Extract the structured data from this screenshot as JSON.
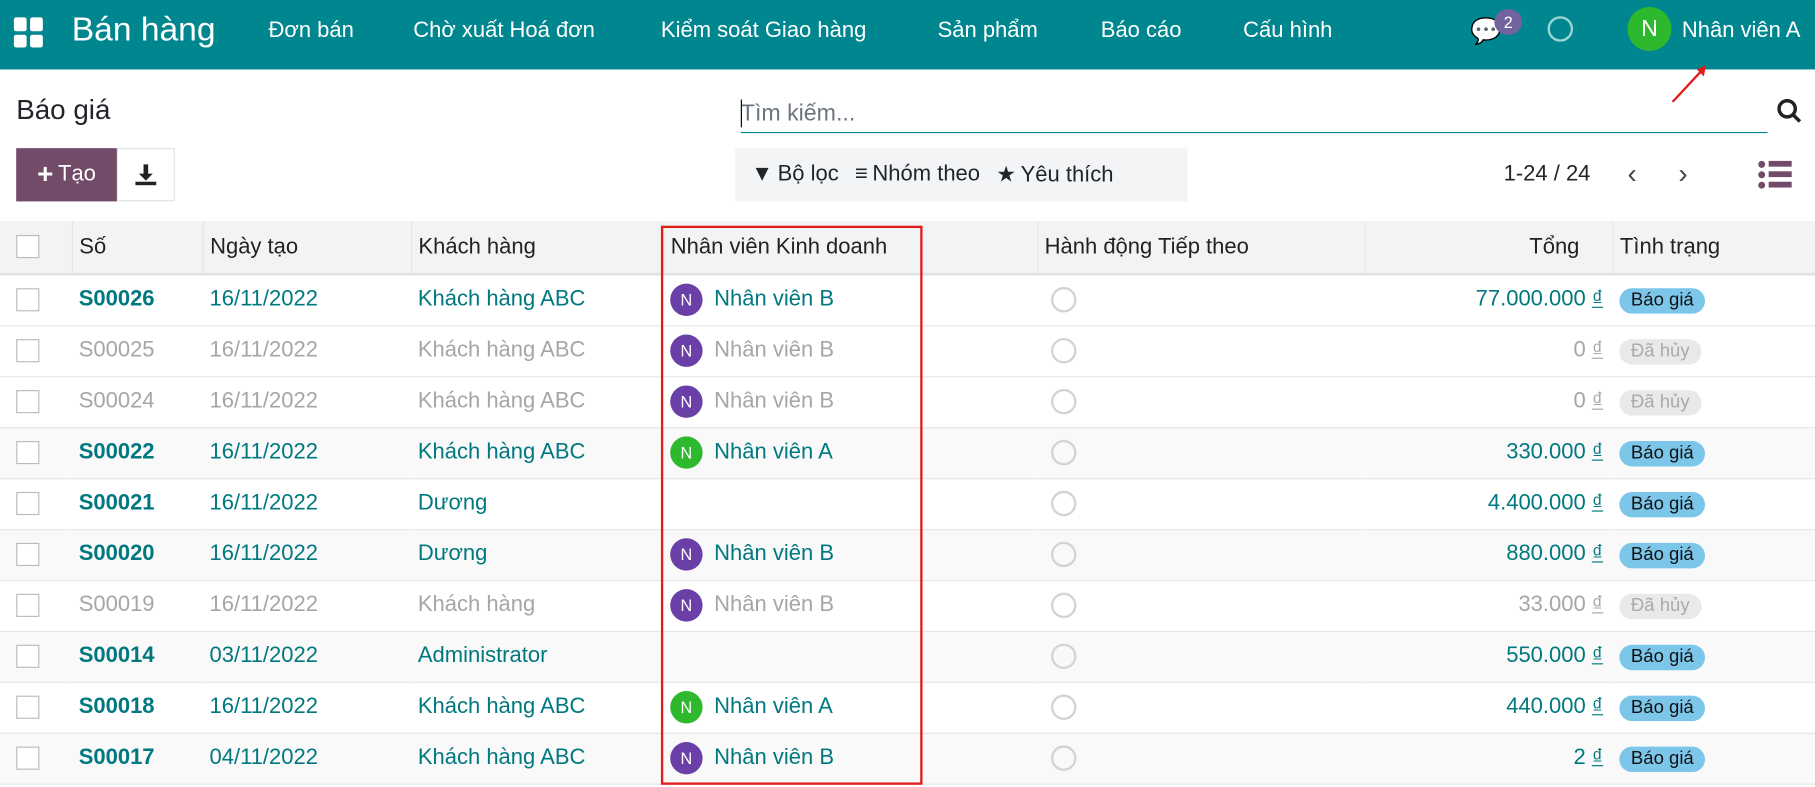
{
  "nav": {
    "brand": "Bán hàng",
    "menu": [
      "Đơn bán",
      "Chờ xuất Hoá đơn",
      "Kiểm soát Giao hàng",
      "Sản phẩm",
      "Báo cáo",
      "Cấu hình"
    ],
    "chat_count": "2",
    "user_initial": "N",
    "user_name": "Nhân viên A"
  },
  "page": {
    "title": "Báo giá",
    "search_placeholder": "Tìm kiếm...",
    "create_label": "Tạo",
    "filter": "Bộ lọc",
    "group": "Nhóm theo",
    "fav": "Yêu thích",
    "pager": "1-24 / 24"
  },
  "colors": {
    "nav": "#00868f",
    "primary": "#714b67",
    "highlight_box": "#e21b1b",
    "avatar_a": "#2eb82e",
    "avatar_b": "#6a3fa8"
  },
  "table": {
    "headers": [
      "Số",
      "Ngày tạo",
      "Khách hàng",
      "Nhân viên Kinh doanh",
      "Hành động Tiếp theo",
      "Tổng",
      "Tình trạng"
    ],
    "rows": [
      {
        "no": "S00026",
        "date": "16/11/2022",
        "customer": "Khách hàng ABC",
        "sales": "Nhân viên B",
        "av": "b",
        "total": "77.000.000",
        "cur": "₫",
        "status": "Báo giá",
        "muted": false
      },
      {
        "no": "S00025",
        "date": "16/11/2022",
        "customer": "Khách hàng ABC",
        "sales": "Nhân viên B",
        "av": "b",
        "total": "0",
        "cur": "₫",
        "status": "Đã hủy",
        "muted": true
      },
      {
        "no": "S00024",
        "date": "16/11/2022",
        "customer": "Khách hàng ABC",
        "sales": "Nhân viên B",
        "av": "b",
        "total": "0",
        "cur": "₫",
        "status": "Đã hủy",
        "muted": true
      },
      {
        "no": "S00022",
        "date": "16/11/2022",
        "customer": "Khách hàng ABC",
        "sales": "Nhân viên A",
        "av": "a",
        "total": "330.000",
        "cur": "₫",
        "status": "Báo giá",
        "muted": false
      },
      {
        "no": "S00021",
        "date": "16/11/2022",
        "customer": "Dương",
        "sales": "",
        "av": "",
        "total": "4.400.000",
        "cur": "₫",
        "status": "Báo giá",
        "muted": false
      },
      {
        "no": "S00020",
        "date": "16/11/2022",
        "customer": "Dương",
        "sales": "Nhân viên B",
        "av": "b",
        "total": "880.000",
        "cur": "₫",
        "status": "Báo giá",
        "muted": false
      },
      {
        "no": "S00019",
        "date": "16/11/2022",
        "customer": "Khách hàng",
        "sales": "Nhân viên B",
        "av": "b",
        "total": "33.000",
        "cur": "₫",
        "status": "Đã hủy",
        "muted": true
      },
      {
        "no": "S00014",
        "date": "03/11/2022",
        "customer": "Administrator",
        "sales": "",
        "av": "",
        "total": "550.000",
        "cur": "₫",
        "status": "Báo giá",
        "muted": false
      },
      {
        "no": "S00018",
        "date": "16/11/2022",
        "customer": "Khách hàng ABC",
        "sales": "Nhân viên A",
        "av": "a",
        "total": "440.000",
        "cur": "₫",
        "status": "Báo giá",
        "muted": false
      },
      {
        "no": "S00017",
        "date": "04/11/2022",
        "customer": "Khách hàng ABC",
        "sales": "Nhân viên B",
        "av": "b",
        "total": "2",
        "cur": "₫",
        "status": "Báo giá",
        "muted": false
      }
    ]
  }
}
